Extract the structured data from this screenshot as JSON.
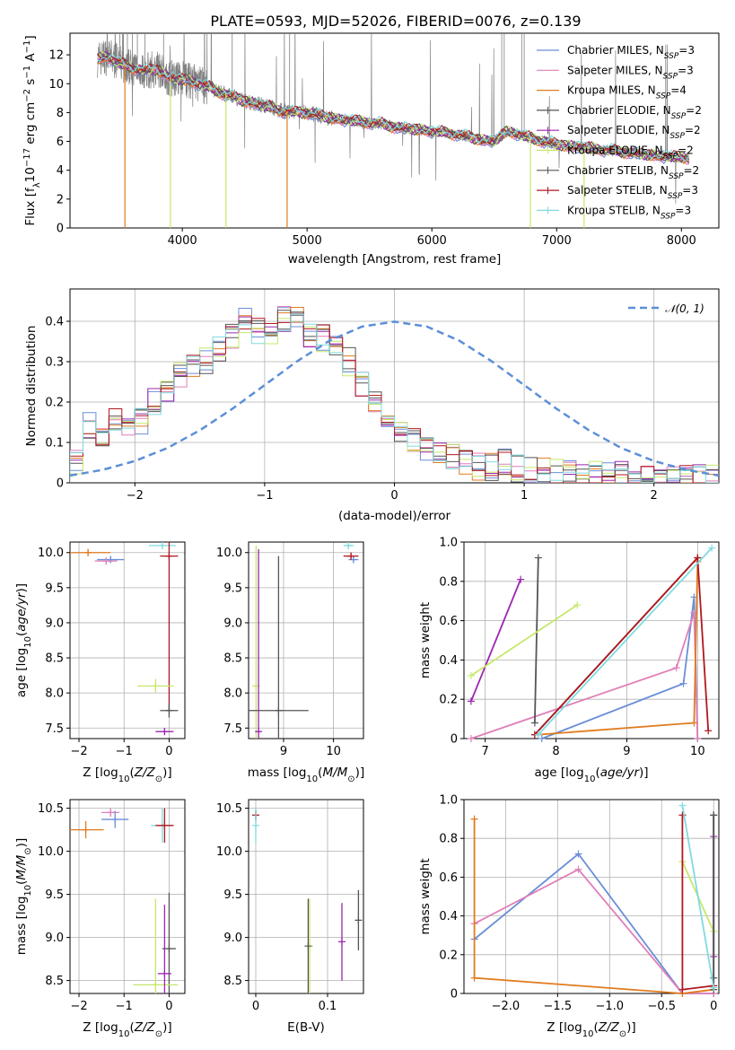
{
  "title": "PLATE=0593, MJD=52026, FIBERID=0076, z=0.139",
  "colors": {
    "spectrum": "#808080",
    "normal": "#5b8fd8",
    "grid": "#b0b0b0"
  },
  "models": [
    {
      "name": "Chabrier MILES",
      "nssp": "3",
      "color": "#6a8ed8"
    },
    {
      "name": "Salpeter MILES",
      "nssp": "3",
      "color": "#e07fb8"
    },
    {
      "name": "Kroupa MILES",
      "nssp": "4",
      "color": "#e07b1f"
    },
    {
      "name": "Chabrier ELODIE",
      "nssp": "2",
      "color": "#555555"
    },
    {
      "name": "Salpeter ELODIE",
      "nssp": "2",
      "color": "#9b27af"
    },
    {
      "name": "Kroupa ELODIE",
      "nssp": "2",
      "color": "#c5e86a"
    },
    {
      "name": "Chabrier STELIB",
      "nssp": "2",
      "color": "#555555"
    },
    {
      "name": "Salpeter STELIB",
      "nssp": "3",
      "color": "#b0171f"
    },
    {
      "name": "Kroupa STELIB",
      "nssp": "3",
      "color": "#80dbe0"
    }
  ],
  "chart_data": [
    {
      "id": "spectrum",
      "type": "line",
      "xlabel": "wavelength [Angstrom, rest frame]",
      "ylabel": "Flux [f_λ 10^-17 erg cm^-2 s^-1 A^-1]",
      "xlim": [
        3100,
        8300
      ],
      "ylim": [
        0,
        13.5
      ],
      "xticks": [
        4000,
        5000,
        6000,
        7000,
        8000
      ],
      "yticks": [
        0,
        2,
        4,
        6,
        8,
        10,
        12
      ],
      "grid": false,
      "legend_position": "upper-right",
      "continuum": {
        "x": [
          3320,
          3400,
          3500,
          3600,
          3700,
          3800,
          3900,
          4000,
          4100,
          4200,
          4300,
          4400,
          4500,
          4600,
          4700,
          4800,
          4900,
          5000,
          5100,
          5200,
          5300,
          5400,
          5500,
          5600,
          5700,
          5800,
          5900,
          6000,
          6100,
          6200,
          6300,
          6400,
          6500,
          6600,
          6700,
          6800,
          6900,
          7000,
          7100,
          7200,
          7300,
          7400,
          7500,
          7600,
          7700,
          7800,
          7900,
          8000,
          8060
        ],
        "y": [
          11.7,
          11.9,
          11.4,
          11.1,
          10.9,
          11.0,
          10.4,
          10.3,
          10.1,
          9.8,
          9.4,
          9.1,
          8.8,
          8.6,
          8.4,
          8.1,
          8.0,
          8.0,
          7.8,
          7.6,
          7.5,
          7.4,
          7.3,
          7.2,
          7.0,
          6.9,
          6.8,
          6.7,
          6.6,
          6.5,
          6.3,
          6.1,
          6.0,
          6.7,
          6.5,
          6.2,
          6.0,
          5.8,
          5.7,
          5.6,
          5.5,
          5.4,
          5.3,
          5.2,
          5.1,
          5.0,
          4.95,
          4.9,
          4.85
        ]
      }
    },
    {
      "id": "residuals",
      "type": "histogram",
      "xlabel": "(data-model)/error",
      "ylabel": "Normed distribution",
      "xlim": [
        -2.5,
        2.5
      ],
      "ylim": [
        0,
        0.48
      ],
      "xticks": [
        -2,
        -1,
        0,
        1,
        2
      ],
      "yticks": [
        0.0,
        0.1,
        0.2,
        0.3,
        0.4
      ],
      "grid": true,
      "legend_position": "upper-right",
      "legend_label": "𝒩(0, 1)",
      "bin_width": 0.1,
      "series": [
        {
          "values": [
            0.05,
            0.14,
            0.12,
            0.16,
            0.14,
            0.15,
            0.2,
            0.23,
            0.27,
            0.29,
            0.3,
            0.33,
            0.36,
            0.4,
            0.38,
            0.36,
            0.41,
            0.4,
            0.37,
            0.36,
            0.33,
            0.3,
            0.24,
            0.2,
            0.15,
            0.12,
            0.1,
            0.08,
            0.07,
            0.06,
            0.05,
            0.04,
            0.04,
            0.05,
            0.035,
            0.03,
            0.03,
            0.025,
            0.02,
            0.02,
            0.02,
            0.015,
            0.02,
            0.015,
            0.01,
            0.015,
            0.01,
            0.01,
            0.01,
            0.01
          ]
        }
      ],
      "normal_x": [
        -2.5,
        -2.25,
        -2.0,
        -1.75,
        -1.5,
        -1.25,
        -1.0,
        -0.75,
        -0.5,
        -0.25,
        0.0,
        0.25,
        0.5,
        0.75,
        1.0,
        1.25,
        1.5,
        1.75,
        2.0,
        2.25,
        2.5
      ],
      "normal_y": [
        0.018,
        0.032,
        0.054,
        0.086,
        0.13,
        0.183,
        0.242,
        0.301,
        0.352,
        0.387,
        0.399,
        0.387,
        0.352,
        0.301,
        0.242,
        0.183,
        0.13,
        0.086,
        0.054,
        0.032,
        0.018
      ]
    },
    {
      "id": "age-vs-Z",
      "type": "errorbar",
      "xlabel": "Z [log10(Z/Z⊙)]",
      "ylabel": "age [log10(age/yr)]",
      "xlim": [
        -2.2,
        0.35
      ],
      "ylim": [
        7.35,
        10.15
      ],
      "xticks": [
        -2,
        -1,
        0
      ],
      "yticks": [
        7.5,
        8.0,
        8.5,
        9.0,
        9.5,
        10.0
      ],
      "grid": true,
      "points": [
        {
          "model": 2,
          "x": -1.8,
          "y": 10.0,
          "xerr": 0.5,
          "yerr": 0.05
        },
        {
          "model": 0,
          "x": -1.3,
          "y": 9.9,
          "xerr": 0.3,
          "yerr": 0.05
        },
        {
          "model": 1,
          "x": -1.4,
          "y": 9.88,
          "xerr": 0.25,
          "yerr": 0.05
        },
        {
          "model": 8,
          "x": -0.15,
          "y": 10.1,
          "xerr": 0.3,
          "yerr": 0.05
        },
        {
          "model": 7,
          "x": 0.0,
          "y": 9.95,
          "xerr": 0.2,
          "yerr": 2.2
        },
        {
          "model": 5,
          "x": -0.3,
          "y": 8.1,
          "xerr": 0.4,
          "yerr": 0.1
        },
        {
          "model": 3,
          "x": 0.0,
          "y": 7.75,
          "xerr": 0.2,
          "yerr": 0.1
        },
        {
          "model": 4,
          "x": -0.1,
          "y": 7.45,
          "xerr": 0.2,
          "yerr": 0.05
        }
      ]
    },
    {
      "id": "age-vs-mass",
      "type": "errorbar",
      "xlabel": "mass [log10(M/M⊙)]",
      "ylabel": "",
      "xlim": [
        8.3,
        10.6
      ],
      "ylim": [
        7.35,
        10.15
      ],
      "xticks": [
        9,
        10
      ],
      "yticks": [
        7.5,
        8.0,
        8.5,
        9.0,
        9.5,
        10.0
      ],
      "grid": true,
      "points": [
        {
          "model": 0,
          "x": 10.4,
          "y": 9.9,
          "xerr": 0.1,
          "yerr": 0.05
        },
        {
          "model": 8,
          "x": 10.3,
          "y": 10.1,
          "xerr": 0.1,
          "yerr": 0.05
        },
        {
          "model": 7,
          "x": 10.35,
          "y": 9.95,
          "xerr": 0.15,
          "yerr": 0.05
        },
        {
          "model": 5,
          "x": 8.45,
          "y": 8.1,
          "xerr": 0.05,
          "yerr": 2.0
        },
        {
          "model": 3,
          "x": 8.9,
          "y": 7.75,
          "xerr": 0.6,
          "yerr": 2.2
        },
        {
          "model": 4,
          "x": 8.5,
          "y": 7.45,
          "xerr": 0.05,
          "yerr": 2.6
        }
      ]
    },
    {
      "id": "weight-vs-age",
      "type": "line",
      "xlabel": "age [log10(age/yr)]",
      "ylabel": "mass weight",
      "xlim": [
        6.7,
        10.3
      ],
      "ylim": [
        0,
        1
      ],
      "xticks": [
        7,
        8,
        9,
        10
      ],
      "yticks": [
        0.0,
        0.2,
        0.4,
        0.6,
        0.8,
        1.0
      ],
      "grid": true,
      "series": [
        {
          "model": 0,
          "x": [
            7.8,
            9.8,
            9.95,
            10.0
          ],
          "y": [
            0.0,
            0.28,
            0.72,
            0.0
          ]
        },
        {
          "model": 1,
          "x": [
            6.8,
            9.7,
            9.95,
            10.0
          ],
          "y": [
            0.0,
            0.36,
            0.64,
            0.0
          ]
        },
        {
          "model": 2,
          "x": [
            7.75,
            9.95,
            10.0
          ],
          "y": [
            0.02,
            0.08,
            0.9
          ]
        },
        {
          "model": 3,
          "x": [
            7.7,
            7.75
          ],
          "y": [
            0.08,
            0.92
          ]
        },
        {
          "model": 4,
          "x": [
            6.8,
            7.5
          ],
          "y": [
            0.19,
            0.81
          ]
        },
        {
          "model": 5,
          "x": [
            6.8,
            8.3
          ],
          "y": [
            0.32,
            0.68
          ]
        },
        {
          "model": 6,
          "x": [
            7.7,
            10.0
          ],
          "y": [
            0.02,
            0.92
          ]
        },
        {
          "model": 7,
          "x": [
            7.7,
            10.0,
            10.15
          ],
          "y": [
            0.02,
            0.92,
            0.04
          ]
        },
        {
          "model": 8,
          "x": [
            7.75,
            10.2
          ],
          "y": [
            0.02,
            0.97
          ]
        }
      ]
    },
    {
      "id": "mass-vs-Z",
      "type": "errorbar",
      "xlabel": "Z [log10(Z/Z⊙)]",
      "ylabel": "mass [log10(M/M⊙)]",
      "xlim": [
        -2.2,
        0.35
      ],
      "ylim": [
        8.35,
        10.6
      ],
      "xticks": [
        -2,
        -1,
        0
      ],
      "yticks": [
        8.5,
        9.0,
        9.5,
        10.0,
        10.5
      ],
      "grid": true,
      "points": [
        {
          "model": 1,
          "x": -1.3,
          "y": 10.45,
          "xerr": 0.2,
          "yerr": 0.05
        },
        {
          "model": 0,
          "x": -1.2,
          "y": 10.37,
          "xerr": 0.3,
          "yerr": 0.1
        },
        {
          "model": 2,
          "x": -1.85,
          "y": 10.25,
          "xerr": 0.4,
          "yerr": 0.1
        },
        {
          "model": 8,
          "x": -0.15,
          "y": 10.3,
          "xerr": 0.25,
          "yerr": 0.2
        },
        {
          "model": 7,
          "x": -0.1,
          "y": 10.3,
          "xerr": 0.2,
          "yerr": 0.2
        },
        {
          "model": 3,
          "x": 0.0,
          "y": 8.87,
          "xerr": 0.15,
          "yerr": 0.65
        },
        {
          "model": 5,
          "x": -0.3,
          "y": 8.45,
          "xerr": 0.5,
          "yerr": 1.0
        },
        {
          "model": 4,
          "x": -0.1,
          "y": 8.58,
          "xerr": 0.15,
          "yerr": 0.8
        }
      ]
    },
    {
      "id": "mass-vs-EBV",
      "type": "errorbar",
      "xlabel": "E(B-V)",
      "ylabel": "",
      "xlim": [
        -0.01,
        0.15
      ],
      "ylim": [
        8.35,
        10.6
      ],
      "xticks": [
        0.0,
        0.1
      ],
      "yticks": [
        8.5,
        9.0,
        9.5,
        10.0,
        10.5
      ],
      "grid": true,
      "points": [
        {
          "model": 7,
          "x": 0.0,
          "y": 10.42,
          "xerr": 0.0,
          "yerr": 0.06
        },
        {
          "model": 8,
          "x": 0.0,
          "y": 10.3,
          "xerr": 0.0,
          "yerr": 0.2
        },
        {
          "model": 5,
          "x": 0.075,
          "y": 8.9,
          "xerr": 0.0,
          "yerr": 0.55
        },
        {
          "model": 3,
          "x": 0.073,
          "y": 8.9,
          "xerr": 0.0,
          "yerr": 0.55
        },
        {
          "model": 4,
          "x": 0.12,
          "y": 8.95,
          "xerr": 0.0,
          "yerr": 0.45
        },
        {
          "model": 6,
          "x": 0.143,
          "y": 9.2,
          "xerr": 0.0,
          "yerr": 0.35
        }
      ]
    },
    {
      "id": "weight-vs-Z",
      "type": "line",
      "xlabel": "Z [log10(Z/Z⊙)]",
      "ylabel": "mass weight",
      "xlim": [
        -2.4,
        0.05
      ],
      "ylim": [
        0,
        1
      ],
      "xticks": [
        -2.0,
        -1.5,
        -1.0,
        -0.5,
        0.0
      ],
      "yticks": [
        0.0,
        0.2,
        0.4,
        0.6,
        0.8,
        1.0
      ],
      "grid": true,
      "series": [
        {
          "model": 0,
          "x": [
            -2.3,
            -1.3,
            -0.3,
            0.0
          ],
          "y": [
            0.28,
            0.72,
            0.0,
            0.0
          ]
        },
        {
          "model": 1,
          "x": [
            -2.3,
            -1.3,
            -0.3,
            0.0
          ],
          "y": [
            0.36,
            0.64,
            0.0,
            0.0
          ]
        },
        {
          "model": 2,
          "x": [
            -2.3,
            -2.3,
            -0.3,
            0.0
          ],
          "y": [
            0.9,
            0.08,
            0.0,
            0.02
          ]
        },
        {
          "model": 3,
          "x": [
            0.0,
            0.0
          ],
          "y": [
            0.92,
            0.08
          ]
        },
        {
          "model": 4,
          "x": [
            0.0,
            0.0
          ],
          "y": [
            0.81,
            0.19
          ]
        },
        {
          "model": 5,
          "x": [
            -0.3,
            0.0
          ],
          "y": [
            0.68,
            0.32
          ]
        },
        {
          "model": 6,
          "x": [
            0.0,
            0.0
          ],
          "y": [
            0.92,
            0.02
          ]
        },
        {
          "model": 7,
          "x": [
            -0.3,
            -0.3,
            0.0
          ],
          "y": [
            0.92,
            0.02,
            0.04
          ]
        },
        {
          "model": 8,
          "x": [
            -0.3,
            0.0
          ],
          "y": [
            0.97,
            0.03
          ]
        }
      ]
    }
  ]
}
